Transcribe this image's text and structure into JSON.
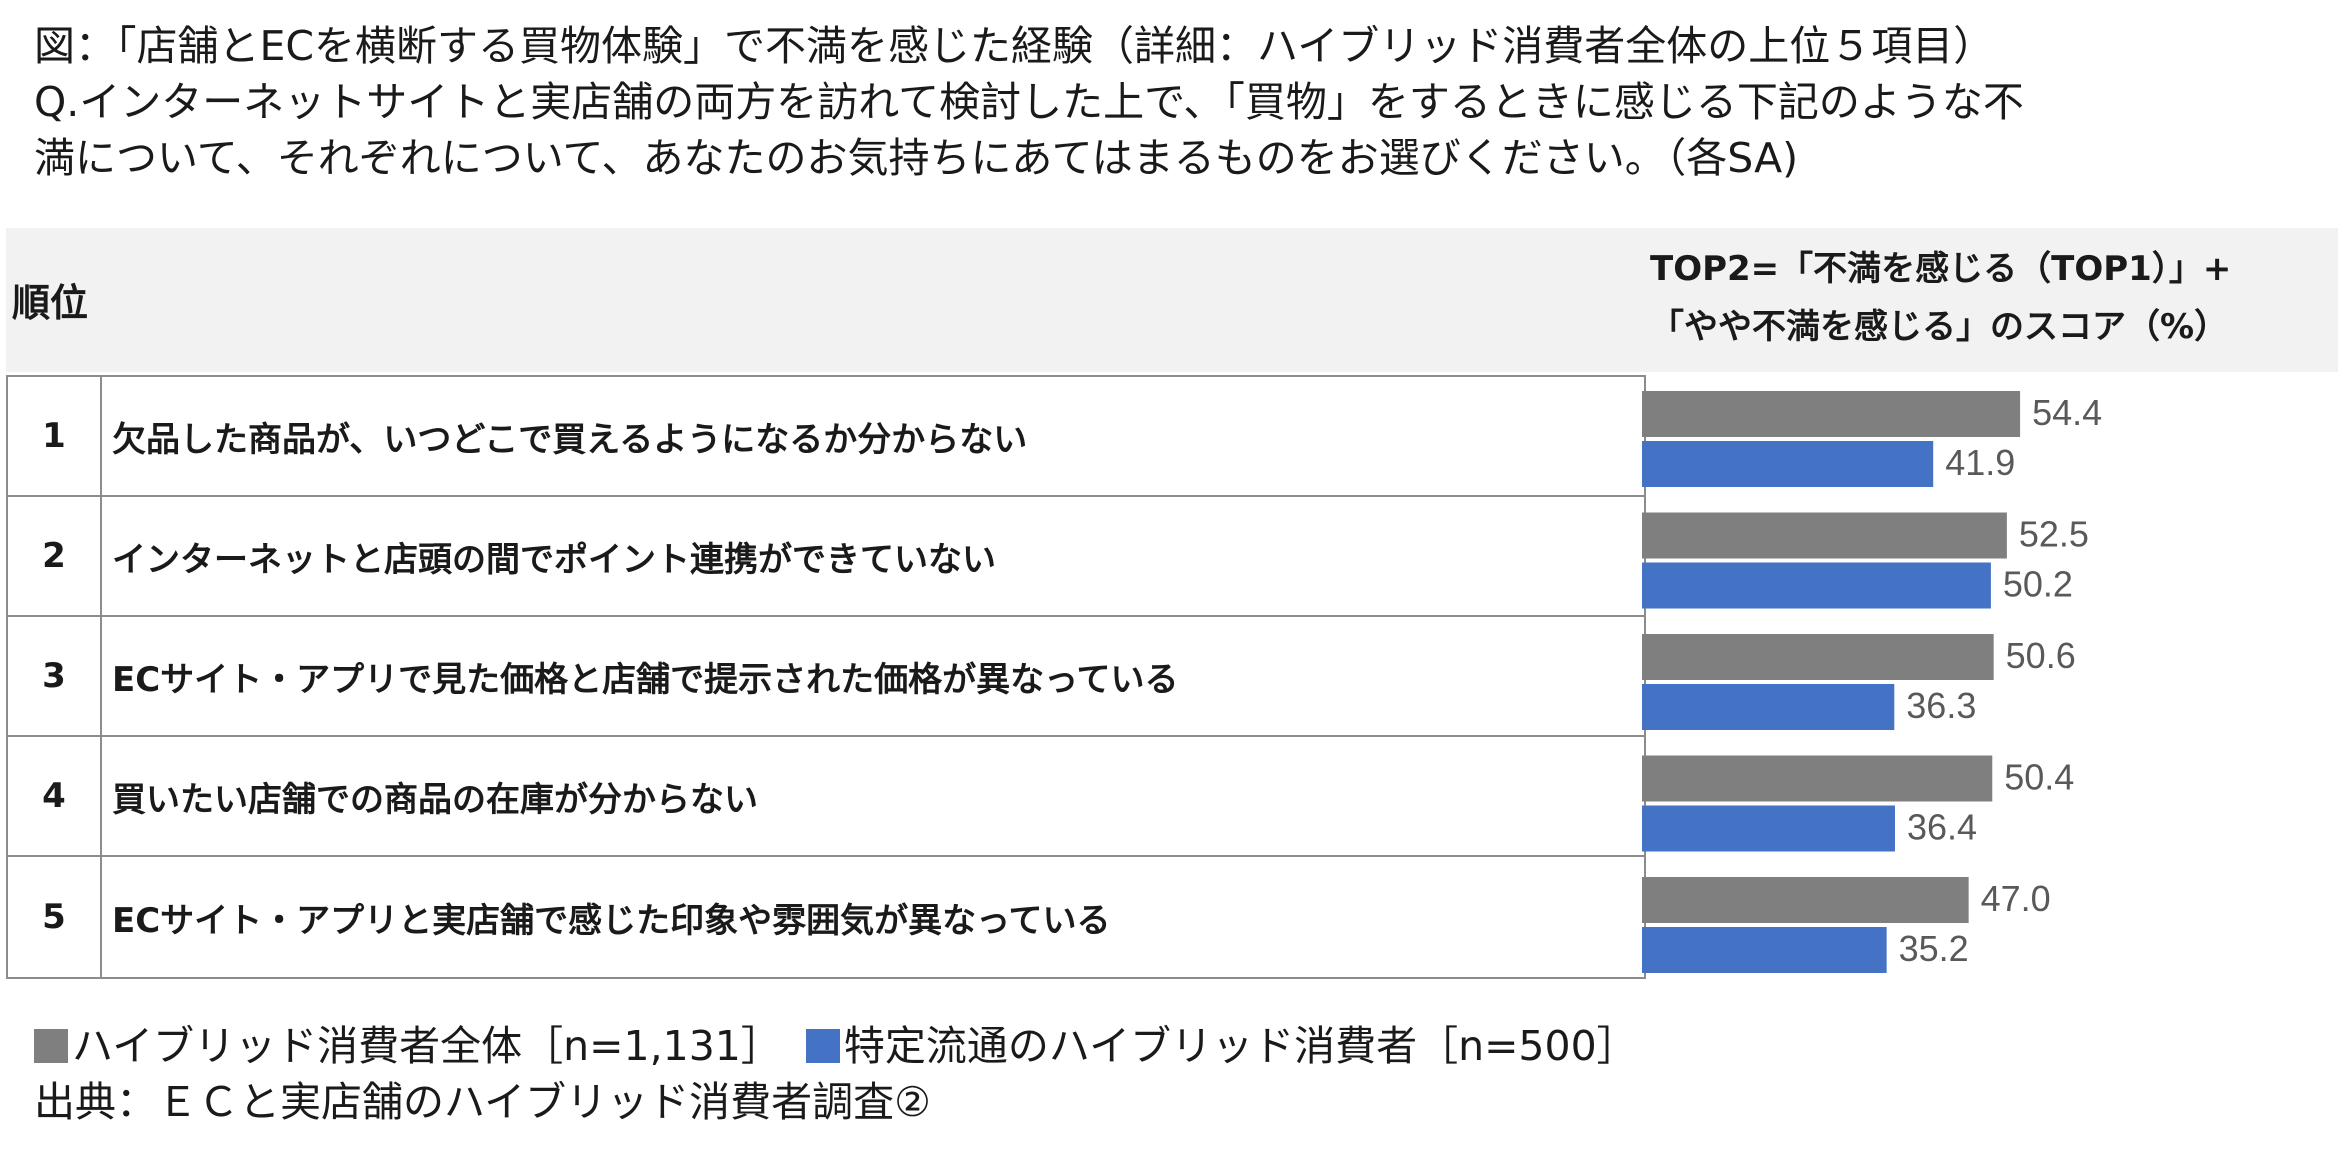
{
  "caption": {
    "line1": "図：「店舗とECを横断する買物体験」で不満を感じた経験（詳細：ハイブリッド消費者全体の上位５項目）",
    "line2": "Q.インターネットサイトと実店舗の両方を訪れて検討した上で、「買物」をするときに感じる下記のような不",
    "line3": "満について、それぞれについて、あなたのお気持ちにあてはまるものをお選びください。（各SA)"
  },
  "table": {
    "rank_header": "順位",
    "score_header_line1": "TOP2=「不満を感じる（TOP1）」+",
    "score_header_line2": "「やや不満を感じる」のスコア（%）",
    "rows": [
      {
        "rank": "1",
        "item": "欠品した商品が、いつどこで買えるようになるか分からない"
      },
      {
        "rank": "2",
        "item": "インターネットと店頭の間でポイント連携ができていない"
      },
      {
        "rank": "3",
        "item": "ECサイト・アプリで見た価格と店舗で提示された価格が異なっている"
      },
      {
        "rank": "4",
        "item": "買いたい店舗での商品の在庫が分からない"
      },
      {
        "rank": "5",
        "item": "ECサイト・アプリと実店舗で感じた印象や雰囲気が異なっている"
      }
    ]
  },
  "legend": {
    "series1": "ハイブリッド消費者全体［n=1,131］",
    "series2": "特定流通のハイブリッド消費者［n=500］",
    "source": "出典：ＥＣと実店舗のハイブリッド消費者調査②"
  },
  "colors": {
    "series1": "#7f7f7f",
    "series2": "#4472c4",
    "label": "#595959"
  },
  "chart_data": {
    "type": "bar",
    "orientation": "horizontal",
    "categories": [
      "1",
      "2",
      "3",
      "4",
      "5"
    ],
    "series": [
      {
        "name": "ハイブリッド消費者全体［n=1,131］",
        "values": [
          54.4,
          52.5,
          50.6,
          50.4,
          47.0
        ]
      },
      {
        "name": "特定流通のハイブリッド消費者［n=500］",
        "values": [
          41.9,
          50.2,
          36.3,
          36.4,
          35.2
        ]
      }
    ],
    "value_labels": [
      [
        "54.4",
        "41.9"
      ],
      [
        "52.5",
        "50.2"
      ],
      [
        "50.6",
        "36.3"
      ],
      [
        "50.4",
        "36.4"
      ],
      [
        "47.0",
        "35.2"
      ]
    ],
    "xlim": [
      0,
      70
    ],
    "legend_position": "bottom-left"
  }
}
